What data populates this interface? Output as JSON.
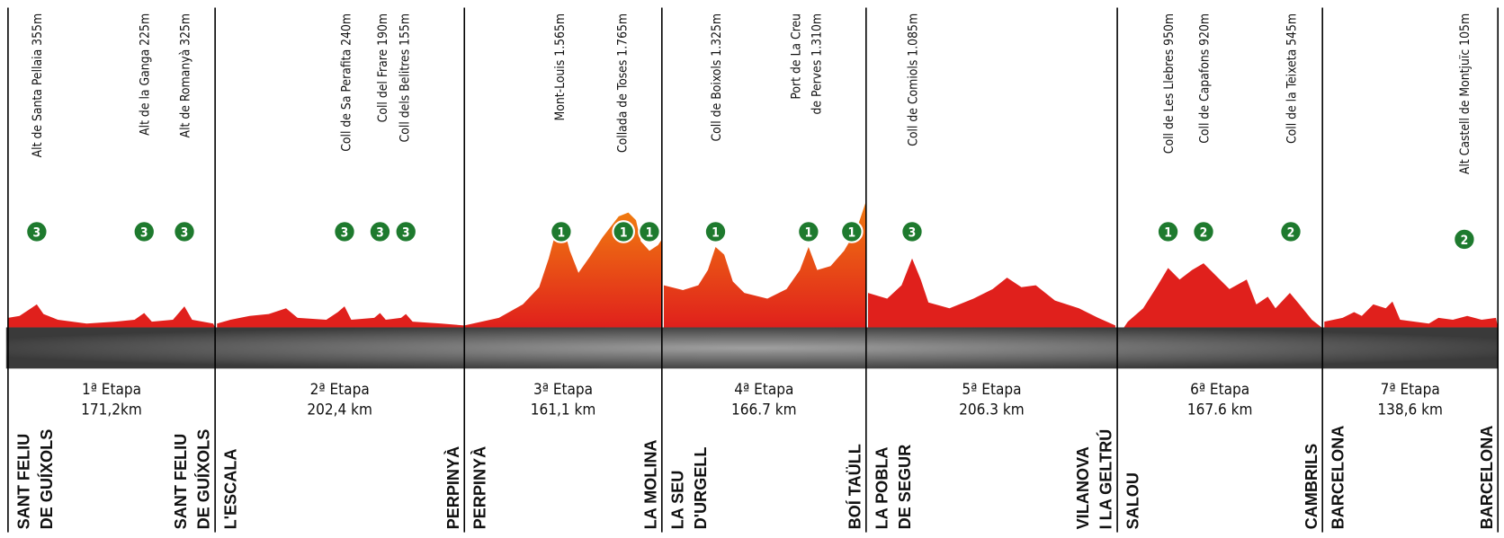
{
  "stages": [
    {
      "label": "1ª Etapa",
      "distance": "171,2km",
      "start": [
        "SANT FELIU",
        "DE GUÍXOLS"
      ],
      "finish": [
        "SANT FELIU",
        "DE GUÍXOLS"
      ],
      "climbs": [
        {
          "name": [
            "Alt de Santa Pellaia 355m"
          ],
          "category": "3"
        },
        {
          "name": [
            "Alt de la Ganga 225m"
          ],
          "category": "3"
        },
        {
          "name": [
            "Alt de Romanyà 325m"
          ],
          "category": "3"
        }
      ]
    },
    {
      "label": "2ª Etapa",
      "distance": "202,4 km",
      "start": [
        "L'ESCALA"
      ],
      "finish": [
        "PERPINYÀ"
      ],
      "climbs": [
        {
          "name": [
            "Coll de Sa Perafita 240m"
          ],
          "category": "3"
        },
        {
          "name": [
            "Coll del Frare 190m"
          ],
          "category": "3"
        },
        {
          "name": [
            "Coll dels Belitres 155m"
          ],
          "category": "3"
        }
      ]
    },
    {
      "label": "3ª Etapa",
      "distance": "161,1 km",
      "start": [
        "PERPINYÀ"
      ],
      "finish": [
        "LA MOLINA"
      ],
      "climbs": [
        {
          "name": [
            "Mont-Louis 1.565m"
          ],
          "category": "1"
        },
        {
          "name": [
            "Collada de Toses 1.765m"
          ],
          "category": "1"
        },
        {
          "category": "1"
        }
      ]
    },
    {
      "label": "4ª Etapa",
      "distance": "166.7 km",
      "start": [
        "LA SEU",
        "D'URGELL"
      ],
      "finish": [
        "BOÍ TAÜLL"
      ],
      "climbs": [
        {
          "name": [
            "Coll de Boixols 1.325m"
          ],
          "category": "1"
        },
        {
          "name": [
            "Port de La Creu",
            "de Perves 1.310m"
          ],
          "category": "1"
        },
        {
          "category": "1"
        }
      ]
    },
    {
      "label": "5ª Etapa",
      "distance": "206.3 km",
      "start": [
        "LA POBLA",
        "DE SEGUR"
      ],
      "finish": [
        "VILANOVA",
        "I LA GELTRÚ"
      ],
      "climbs": [
        {
          "name": [
            "Coll de Comiols 1.085m"
          ],
          "category": "3"
        }
      ]
    },
    {
      "label": "6ª Etapa",
      "distance": "167.6 km",
      "start": [
        "SALOU"
      ],
      "finish": [
        "CAMBRILS"
      ],
      "climbs": [
        {
          "name": [
            "Coll de Les Llebres  950m"
          ],
          "category": "1"
        },
        {
          "name": [
            "Coll de Capafons  920m"
          ],
          "category": "2"
        },
        {
          "name": [
            "Coll de la Teixeta 545m"
          ],
          "category": "2"
        }
      ]
    },
    {
      "label": "7ª Etapa",
      "distance": "138,6 km",
      "start": [
        "BARCELONA"
      ],
      "finish": [
        "BARCELONA"
      ],
      "climbs": [
        {
          "name": [
            "Alt  Castell de Montjuïc 105m"
          ],
          "category": "2"
        }
      ]
    }
  ]
}
